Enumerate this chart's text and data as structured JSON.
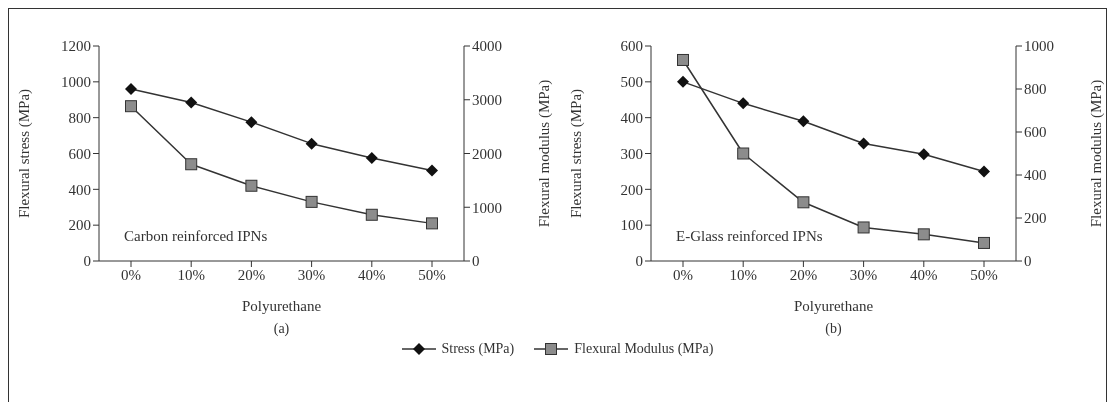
{
  "chart_data": [
    {
      "type": "line",
      "categories": [
        "0%",
        "10%",
        "20%",
        "30%",
        "40%",
        "50%"
      ],
      "xlabel": "Polyurethane",
      "ylabel": "Flexural stress (MPa)",
      "y2label": "Flexural modulus (MPa)",
      "ylim": [
        0,
        1200
      ],
      "yticks": [
        0,
        200,
        400,
        600,
        800,
        1000,
        1200
      ],
      "y2lim": [
        0,
        4000
      ],
      "y2ticks": [
        0,
        1000,
        2000,
        3000,
        4000
      ],
      "grid": false,
      "legend": "bottom",
      "annotations": [
        "Carbon reinforced IPNs",
        "(a)"
      ],
      "series": [
        {
          "name": "Stress (MPa)",
          "color": "#111111",
          "marker": "diamond",
          "values": [
            960,
            885,
            775,
            655,
            575,
            505
          ]
        },
        {
          "name": "Flexural Modulus (MPa)",
          "color": "#8c8c8c",
          "marker": "square",
          "axis": "y2",
          "values": [
            2880,
            1800,
            1400,
            1100,
            860,
            700
          ]
        }
      ]
    },
    {
      "type": "line",
      "categories": [
        "0%",
        "10%",
        "20%",
        "30%",
        "40%",
        "50%"
      ],
      "xlabel": "Polyurethane",
      "ylabel": "Flexural stress (MPa)",
      "y2label": "Flexural modulus (MPa)",
      "ylim": [
        0,
        600
      ],
      "yticks": [
        0,
        100,
        200,
        300,
        400,
        500,
        600
      ],
      "y2lim": [
        0,
        1000
      ],
      "y2ticks": [
        0,
        200,
        400,
        600,
        800,
        1000
      ],
      "grid": false,
      "annotations": [
        "E-Glass reinforced IPNs",
        "(b)"
      ],
      "series": [
        {
          "color": "#111111",
          "marker": "diamond",
          "values": [
            500,
            440,
            390,
            328,
            298,
            250
          ]
        },
        {
          "color": "#8c8c8c",
          "marker": "square",
          "axis": "y2",
          "values": [
            935,
            500,
            273,
            156,
            124,
            84
          ]
        }
      ]
    }
  ]
}
